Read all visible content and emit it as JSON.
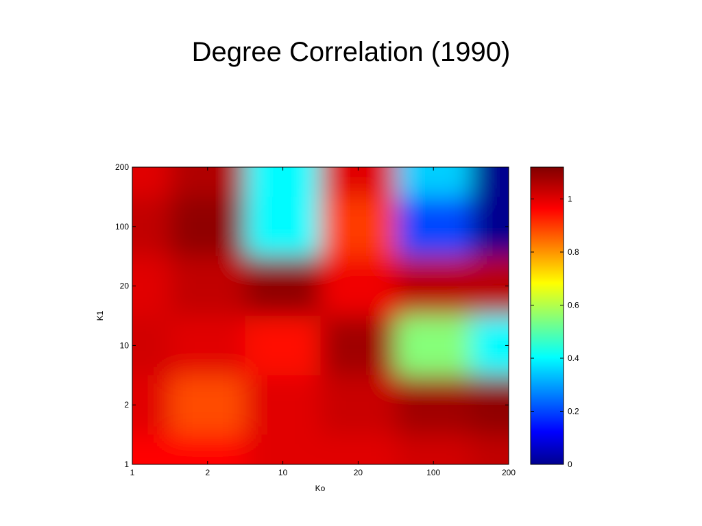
{
  "chart_data": {
    "type": "heatmap",
    "title": "Degree Correlation (1990)",
    "xlabel": "Ko",
    "ylabel": "K1",
    "x_ticks": [
      "1",
      "2",
      "10",
      "20",
      "100",
      "200"
    ],
    "y_ticks": [
      "1",
      "2",
      "10",
      "20",
      "100",
      "200"
    ],
    "colorbar": {
      "colormap": "jet",
      "range": [
        0,
        1.12
      ],
      "ticks": [
        0,
        0.2,
        0.4,
        0.6,
        0.8,
        1
      ],
      "tick_labels": [
        "0",
        "0.2",
        "0.4",
        "0.6",
        "0.8",
        "1"
      ]
    },
    "grid": false,
    "x_categories": [
      "1",
      "2",
      "10",
      "20",
      "100",
      "200"
    ],
    "y_categories": [
      "1",
      "2",
      "10",
      "20",
      "100",
      "200"
    ],
    "values": [
      [
        0.96,
        0.96,
        1.0,
        1.0,
        1.02,
        1.04
      ],
      [
        1.0,
        0.88,
        1.0,
        1.03,
        1.08,
        1.1
      ],
      [
        1.02,
        1.0,
        0.95,
        1.08,
        0.55,
        0.4
      ],
      [
        1.0,
        1.04,
        1.1,
        0.98,
        1.05,
        1.05
      ],
      [
        1.04,
        1.1,
        0.4,
        0.9,
        0.2,
        0.0
      ],
      [
        1.0,
        1.06,
        0.4,
        1.0,
        0.35,
        0.0
      ]
    ]
  }
}
